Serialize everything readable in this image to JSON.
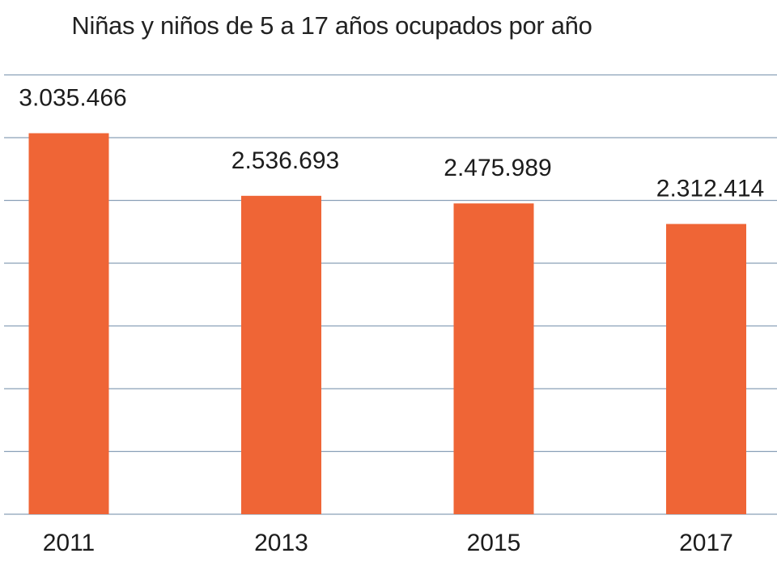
{
  "chart_data": {
    "type": "bar",
    "title": "Niñas y niños de 5 a 17 años ocupados por año",
    "xlabel": "",
    "ylabel": "",
    "categories": [
      "2011",
      "2013",
      "2015",
      "2017"
    ],
    "values": [
      3035466,
      2536693,
      2475989,
      2312414
    ],
    "value_labels": [
      "3.035.466",
      "2.536.693",
      "2.475.989",
      "2.312.414"
    ],
    "ylim": [
      0,
      3500000
    ],
    "grid_step": 500000,
    "grid": true,
    "legend": "none",
    "colors": {
      "bar": "#ef6536",
      "grid": "#8aa0b8",
      "text": "#1c1c1c"
    }
  }
}
